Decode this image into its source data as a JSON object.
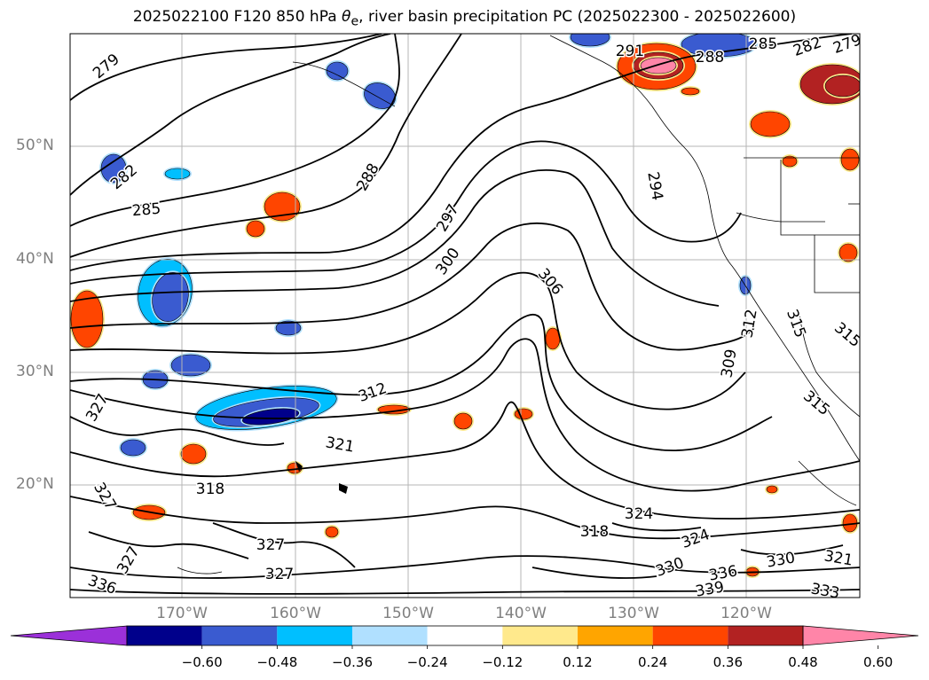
{
  "title": {
    "prefix": "2025022100 F120 850 hPa ",
    "theta": "θ",
    "theta_sub": "e",
    "suffix": ", river basin precipitation PC (2025022300 - 2025022600)"
  },
  "map": {
    "lat_labels": [
      "50°N",
      "40°N",
      "30°N",
      "20°N"
    ],
    "lon_labels": [
      "170°W",
      "160°W",
      "150°W",
      "140°W",
      "130°W",
      "120°W"
    ],
    "grid": true,
    "contour_color": "#000000",
    "contour_labels": [
      "279",
      "282",
      "285",
      "288",
      "291",
      "288",
      "285",
      "282",
      "279",
      "294",
      "297",
      "300",
      "306",
      "309",
      "312",
      "312",
      "315",
      "315",
      "315",
      "318",
      "318",
      "321",
      "321",
      "324",
      "324",
      "327",
      "327",
      "327",
      "327",
      "327",
      "330",
      "330",
      "333",
      "336",
      "336",
      "339"
    ]
  },
  "colorbar": {
    "tick_labels": [
      "−0.60",
      "−0.48",
      "−0.36",
      "−0.24",
      "−0.12",
      "0.12",
      "0.24",
      "0.36",
      "0.48",
      "0.60"
    ],
    "colors": [
      "#9b30d9",
      "#00008b",
      "#3a5bd0",
      "#00bfff",
      "#b0e0ff",
      "#ffffff",
      "#ffe98c",
      "#ffa500",
      "#ff4500",
      "#b22222",
      "#ff85a8"
    ],
    "extend": "both"
  },
  "shading": {
    "negative_colors": [
      "#00bfff",
      "#3a5bd0",
      "#00008b"
    ],
    "positive_colors": [
      "#ffa500",
      "#ff4500",
      "#b22222",
      "#ff85a8"
    ]
  }
}
